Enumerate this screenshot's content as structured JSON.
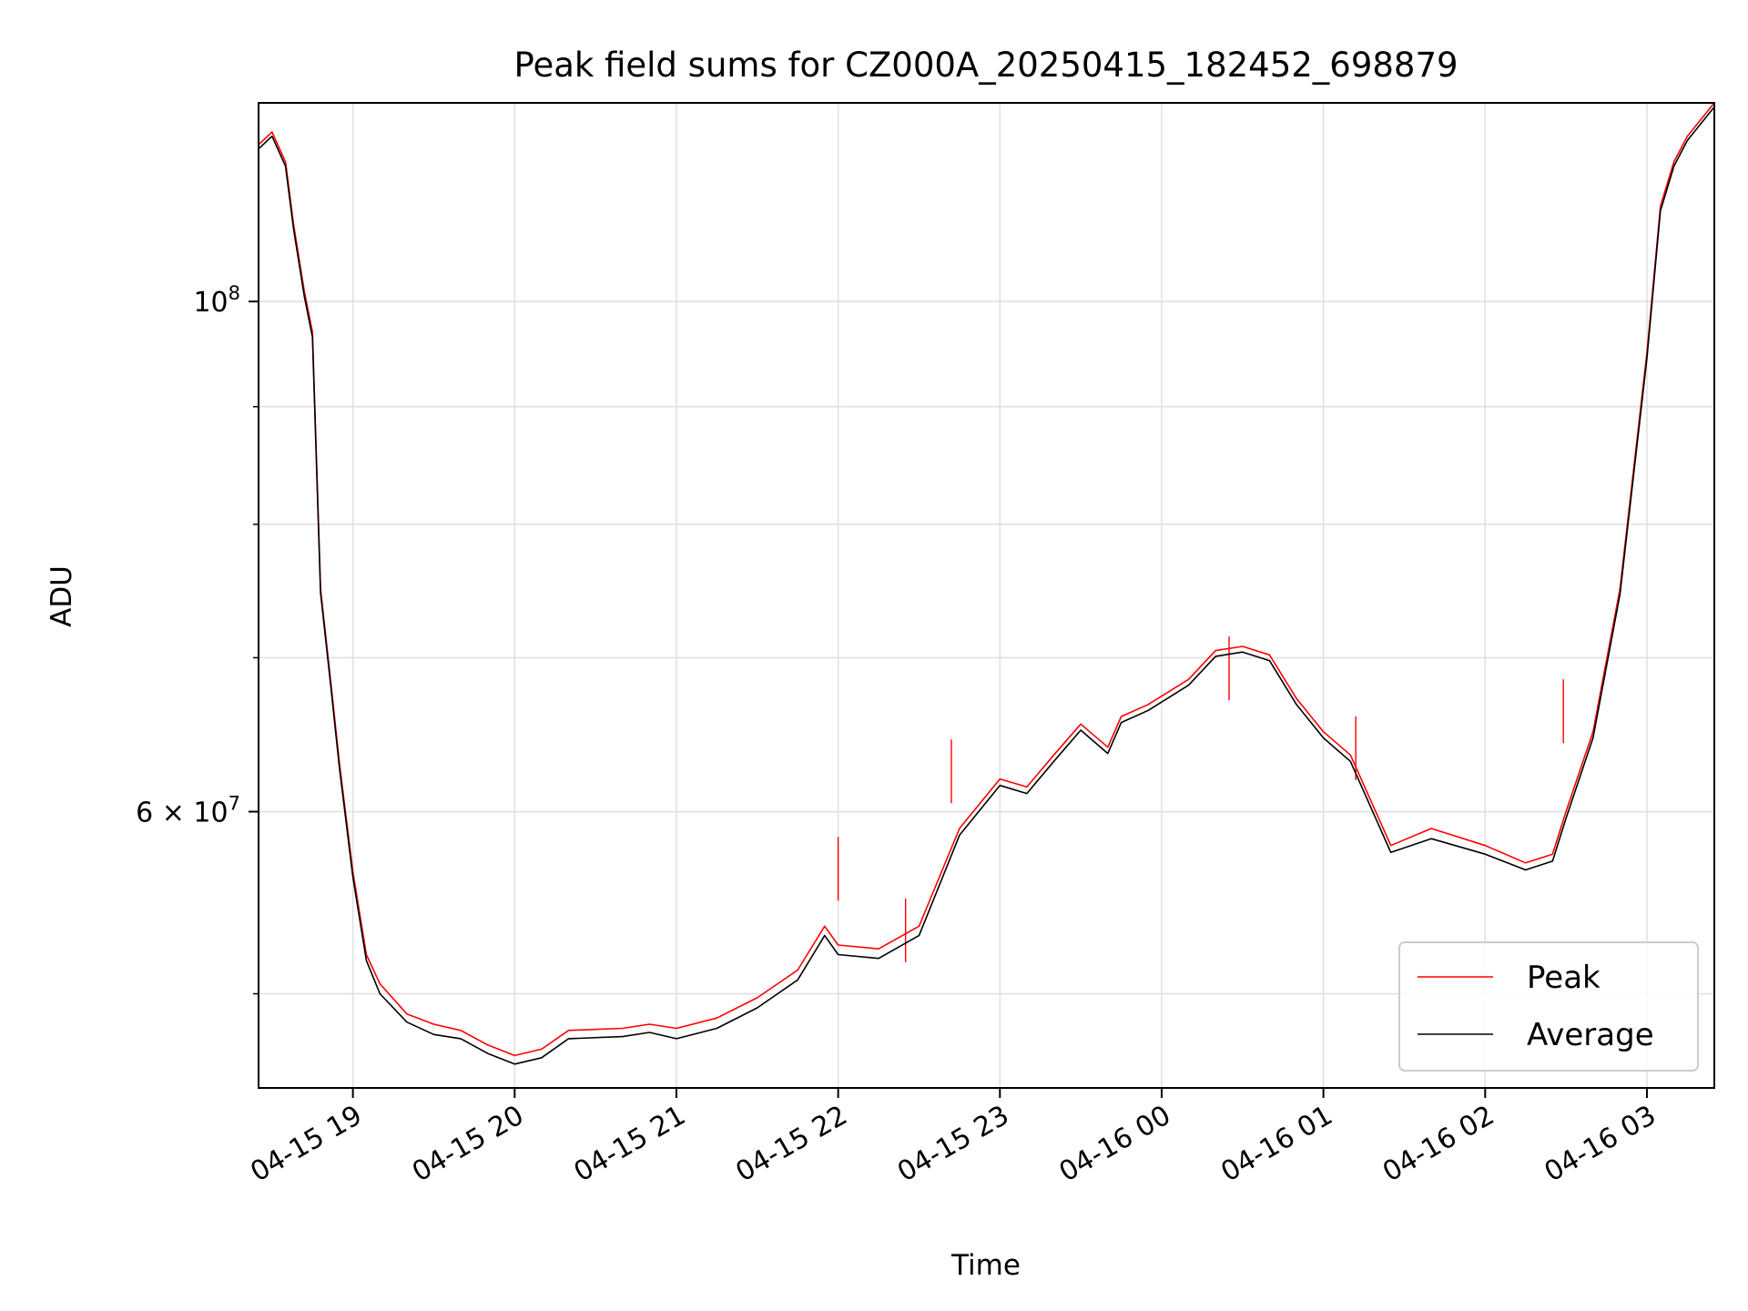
{
  "chart_data": {
    "type": "line",
    "title": "Peak field sums for CZ000A_20250415_182452_698879",
    "xlabel": "Time",
    "ylabel": "ADU",
    "yscale": "log",
    "xlim": [
      "04-15 18:25",
      "04-16 03:25"
    ],
    "ylim": [
      45500000,
      122000000
    ],
    "grid": true,
    "legend_position": "lower right",
    "x_ticks": [
      "04-15 19",
      "04-15 20",
      "04-15 21",
      "04-15 22",
      "04-15 23",
      "04-16 00",
      "04-16 01",
      "04-16 02",
      "04-16 03"
    ],
    "y_major_ticks": [
      {
        "value": 60000000,
        "label": "6 × 10^7"
      },
      {
        "value": 100000000,
        "label": "10^8"
      }
    ],
    "y_minor_ticks": [
      50000000,
      70000000,
      80000000,
      90000000
    ],
    "series": [
      {
        "name": "Peak",
        "color": "#ff0000",
        "points": [
          [
            "04-15 18:25",
            117000000
          ],
          [
            "04-15 18:30",
            118500000
          ],
          [
            "04-15 18:35",
            115000000
          ],
          [
            "04-15 18:38",
            108000000
          ],
          [
            "04-15 18:42",
            101000000
          ],
          [
            "04-15 18:45",
            97000000
          ],
          [
            "04-15 18:48",
            75000000
          ],
          [
            "04-15 18:52",
            68000000
          ],
          [
            "04-15 18:55",
            63000000
          ],
          [
            "04-15 19:00",
            56500000
          ],
          [
            "04-15 19:05",
            52000000
          ],
          [
            "04-15 19:10",
            50500000
          ],
          [
            "04-15 19:20",
            49000000
          ],
          [
            "04-15 19:30",
            48500000
          ],
          [
            "04-15 19:40",
            48200000
          ],
          [
            "04-15 19:50",
            47500000
          ],
          [
            "04-15 20:00",
            47000000
          ],
          [
            "04-15 20:10",
            47300000
          ],
          [
            "04-15 20:20",
            48200000
          ],
          [
            "04-15 20:40",
            48300000
          ],
          [
            "04-15 20:50",
            48500000
          ],
          [
            "04-15 21:00",
            48300000
          ],
          [
            "04-15 21:15",
            48800000
          ],
          [
            "04-15 21:30",
            49800000
          ],
          [
            "04-15 21:45",
            51200000
          ],
          [
            "04-15 21:55",
            53500000
          ],
          [
            "04-15 22:00",
            52500000
          ],
          [
            "04-15 22:15",
            52300000
          ],
          [
            "04-15 22:30",
            53500000
          ],
          [
            "04-15 22:45",
            59000000
          ],
          [
            "04-15 23:00",
            62000000
          ],
          [
            "04-15 23:10",
            61500000
          ],
          [
            "04-15 23:20",
            63500000
          ],
          [
            "04-15 23:30",
            65500000
          ],
          [
            "04-15 23:40",
            64000000
          ],
          [
            "04-15 23:45",
            66000000
          ],
          [
            "04-15 23:55",
            66800000
          ],
          [
            "04-16 00:10",
            68500000
          ],
          [
            "04-16 00:20",
            70500000
          ],
          [
            "04-16 00:30",
            70800000
          ],
          [
            "04-16 00:40",
            70200000
          ],
          [
            "04-16 00:50",
            67200000
          ],
          [
            "04-16 01:00",
            65000000
          ],
          [
            "04-16 01:10",
            63500000
          ],
          [
            "04-16 01:25",
            58000000
          ],
          [
            "04-16 01:40",
            59000000
          ],
          [
            "04-16 02:00",
            58000000
          ],
          [
            "04-16 02:15",
            57000000
          ],
          [
            "04-16 02:25",
            57500000
          ],
          [
            "04-16 02:30",
            60000000
          ],
          [
            "04-16 02:40",
            65000000
          ],
          [
            "04-16 02:50",
            75000000
          ],
          [
            "04-16 03:00",
            95000000
          ],
          [
            "04-16 03:05",
            110000000
          ],
          [
            "04-16 03:10",
            115000000
          ],
          [
            "04-16 03:15",
            118000000
          ],
          [
            "04-16 03:25",
            122000000
          ]
        ],
        "spikes": [
          [
            "04-15 22:00",
            58500000
          ],
          [
            "04-15 22:42",
            64500000
          ],
          [
            "04-15 22:25",
            55000000
          ],
          [
            "04-16 00:25",
            71500000
          ],
          [
            "04-16 01:12",
            66000000
          ],
          [
            "04-16 02:29",
            68500000
          ]
        ]
      },
      {
        "name": "Average",
        "color": "#000000",
        "points": [
          [
            "04-15 18:25",
            116500000
          ],
          [
            "04-15 18:30",
            118000000
          ],
          [
            "04-15 18:35",
            114500000
          ],
          [
            "04-15 18:38",
            107500000
          ],
          [
            "04-15 18:42",
            100500000
          ],
          [
            "04-15 18:45",
            96500000
          ],
          [
            "04-15 18:48",
            74700000
          ],
          [
            "04-15 18:52",
            67700000
          ],
          [
            "04-15 18:55",
            62700000
          ],
          [
            "04-15 19:00",
            56200000
          ],
          [
            "04-15 19:05",
            51700000
          ],
          [
            "04-15 19:10",
            50000000
          ],
          [
            "04-15 19:20",
            48600000
          ],
          [
            "04-15 19:30",
            48000000
          ],
          [
            "04-15 19:40",
            47800000
          ],
          [
            "04-15 19:50",
            47100000
          ],
          [
            "04-15 20:00",
            46600000
          ],
          [
            "04-15 20:10",
            46900000
          ],
          [
            "04-15 20:20",
            47800000
          ],
          [
            "04-15 20:40",
            47900000
          ],
          [
            "04-15 20:50",
            48100000
          ],
          [
            "04-15 21:00",
            47800000
          ],
          [
            "04-15 21:15",
            48300000
          ],
          [
            "04-15 21:30",
            49300000
          ],
          [
            "04-15 21:45",
            50700000
          ],
          [
            "04-15 21:55",
            53000000
          ],
          [
            "04-15 22:00",
            52000000
          ],
          [
            "04-15 22:15",
            51800000
          ],
          [
            "04-15 22:30",
            53000000
          ],
          [
            "04-15 22:45",
            58600000
          ],
          [
            "04-15 23:00",
            61600000
          ],
          [
            "04-15 23:10",
            61100000
          ],
          [
            "04-15 23:20",
            63100000
          ],
          [
            "04-15 23:30",
            65100000
          ],
          [
            "04-15 23:40",
            63600000
          ],
          [
            "04-15 23:45",
            65600000
          ],
          [
            "04-15 23:55",
            66400000
          ],
          [
            "04-16 00:10",
            68100000
          ],
          [
            "04-16 00:20",
            70100000
          ],
          [
            "04-16 00:30",
            70400000
          ],
          [
            "04-16 00:40",
            69800000
          ],
          [
            "04-16 00:50",
            66800000
          ],
          [
            "04-16 01:00",
            64600000
          ],
          [
            "04-16 01:10",
            63100000
          ],
          [
            "04-16 01:25",
            57600000
          ],
          [
            "04-16 01:40",
            58400000
          ],
          [
            "04-16 02:00",
            57500000
          ],
          [
            "04-16 02:15",
            56600000
          ],
          [
            "04-16 02:25",
            57100000
          ],
          [
            "04-16 02:30",
            59600000
          ],
          [
            "04-16 02:40",
            64600000
          ],
          [
            "04-16 02:50",
            74600000
          ],
          [
            "04-16 03:00",
            94500000
          ],
          [
            "04-16 03:05",
            109500000
          ],
          [
            "04-16 03:10",
            114500000
          ],
          [
            "04-16 03:15",
            117500000
          ],
          [
            "04-16 03:25",
            121500000
          ]
        ]
      }
    ]
  }
}
